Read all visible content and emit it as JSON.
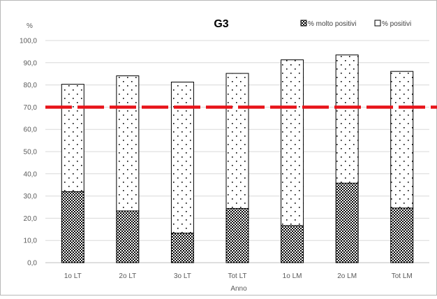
{
  "chart_data": {
    "type": "bar",
    "stacked": true,
    "title": "G3",
    "xlabel": "Anno",
    "ylabel": "%",
    "ylim": [
      0,
      100
    ],
    "ytick_step": 10,
    "ytick_labels": [
      "0,0",
      "10,0",
      "20,0",
      "30,0",
      "40,0",
      "50,0",
      "60,0",
      "70,0",
      "80,0",
      "90,0",
      "100,0"
    ],
    "grid": true,
    "legend_position": "top-right",
    "categories": [
      "1o LT",
      "2o LT",
      "3o LT",
      "Tot LT",
      "1o LM",
      "2o LM",
      "Tot LM"
    ],
    "series": [
      {
        "name": "% molto positivi",
        "values": [
          32.0,
          23.3,
          13.3,
          24.4,
          16.7,
          35.8,
          24.6
        ],
        "pattern": "dense-dots"
      },
      {
        "name": "% positivi",
        "values": [
          48.3,
          60.8,
          68.0,
          60.8,
          74.6,
          57.7,
          61.5
        ],
        "pattern": "sparse-dots"
      }
    ],
    "reference_line": {
      "value": 70,
      "color": "#e8141a",
      "style": "dashed"
    }
  }
}
